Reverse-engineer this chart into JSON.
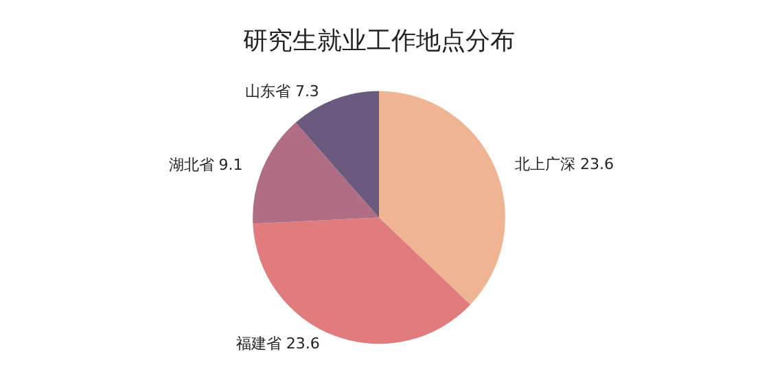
{
  "chart_data": {
    "type": "pie",
    "title": "研究生就业工作地点分布",
    "categories": [
      "北上广深",
      "福建省",
      "湖北省",
      "山东省"
    ],
    "values": [
      23.6,
      23.6,
      9.1,
      7.3
    ],
    "colors": [
      "#efb593",
      "#e07b7e",
      "#b06e84",
      "#6b5a7e"
    ],
    "data_labels": true,
    "legend": false
  }
}
